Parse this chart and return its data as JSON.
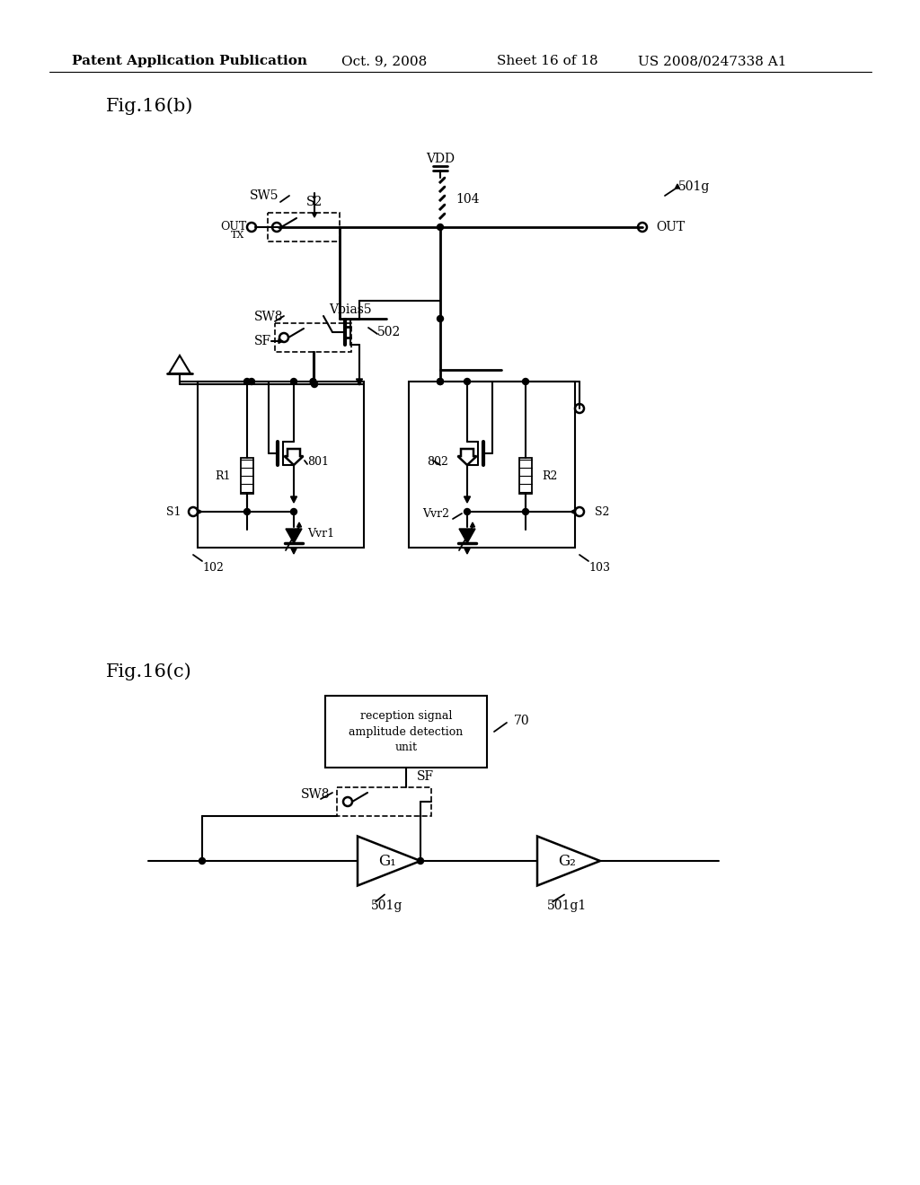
{
  "bg_color": "#ffffff",
  "header_text": "Patent Application Publication",
  "header_date": "Oct. 9, 2008",
  "header_sheet": "Sheet 16 of 18",
  "header_patent": "US 2008/0247338 A1",
  "fig_b_label": "Fig.16(b)",
  "fig_c_label": "Fig.16(c)",
  "lc": "#000000"
}
